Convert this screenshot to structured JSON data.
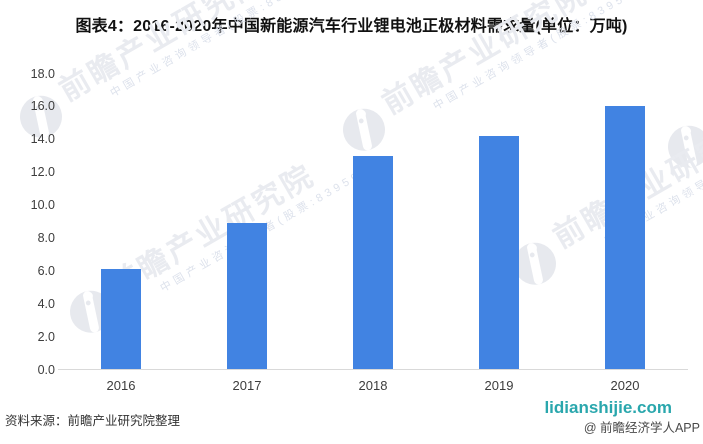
{
  "chart_data": {
    "type": "bar",
    "title": "图表4：2016-2020年中国新能源汽车行业锂电池正极材料需求量(单位：万吨)",
    "categories": [
      "2016",
      "2017",
      "2018",
      "2019",
      "2020"
    ],
    "values": [
      6.1,
      8.9,
      13.0,
      14.2,
      16.0
    ],
    "unit": "万吨",
    "xlabel": "",
    "ylabel": "",
    "ylim": [
      0,
      18
    ],
    "ytick_step": 2,
    "ytick_labels": [
      "0.0",
      "2.0",
      "4.0",
      "6.0",
      "8.0",
      "10.0",
      "12.0",
      "14.0",
      "16.0",
      "18.0"
    ],
    "grid": false,
    "legend": false,
    "bar_color": "#4183e2",
    "axis_line_color": "#d9d9d9"
  },
  "footer": {
    "source": "资料来源：前瞻产业研究院整理",
    "site": "lidianshijie.com",
    "site_color": "#2aa7ad",
    "app_credit": "@ 前瞻经济学人APP"
  },
  "watermark": {
    "logo_icon": "qianzhan-logo",
    "big_text": "前瞻产业研究院",
    "small_text": "中国产业咨询领导者(股票:839599)"
  }
}
